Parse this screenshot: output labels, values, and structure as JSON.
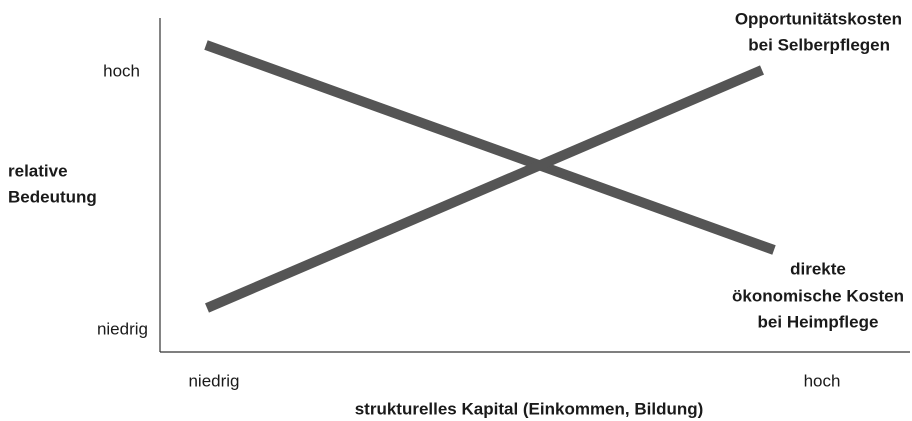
{
  "y_axis": {
    "label": [
      "relative",
      "Bedeutung"
    ],
    "high": "hoch",
    "low": "niedrig"
  },
  "x_axis": {
    "label": "strukturelles Kapital (Einkommen, Bildung)",
    "low": "niedrig",
    "high": "hoch"
  },
  "lines": [
    {
      "label": [
        "direkte",
        "ökonomische Kosten",
        "bei Heimpflege"
      ]
    },
    {
      "label": [
        "Opportunitätskosten",
        "bei Selberpflegen"
      ]
    }
  ]
}
